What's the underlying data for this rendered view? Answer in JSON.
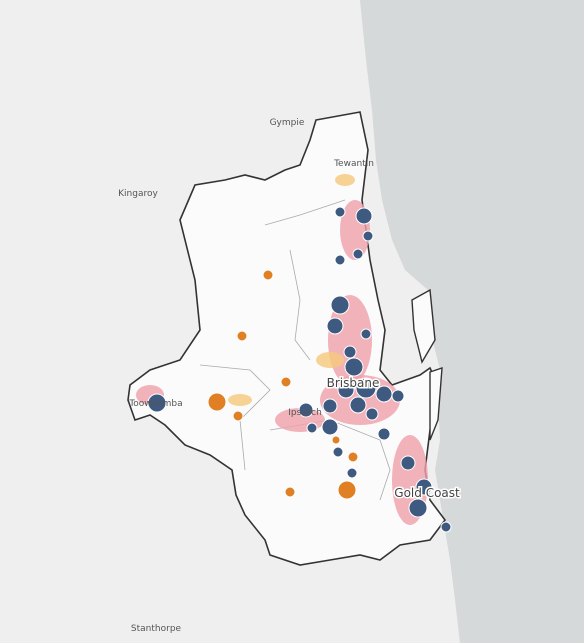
{
  "places": {
    "gympie": "Gympie",
    "tewantin": "Tewantin",
    "kingaroy": "Kingaroy",
    "brisbane": "Brisbane",
    "toowoomba": "Toowoomba",
    "ipswich": "Ipswich",
    "gold_coast": "Gold Coast",
    "stanthorpe": "Stanthorpe"
  }
}
